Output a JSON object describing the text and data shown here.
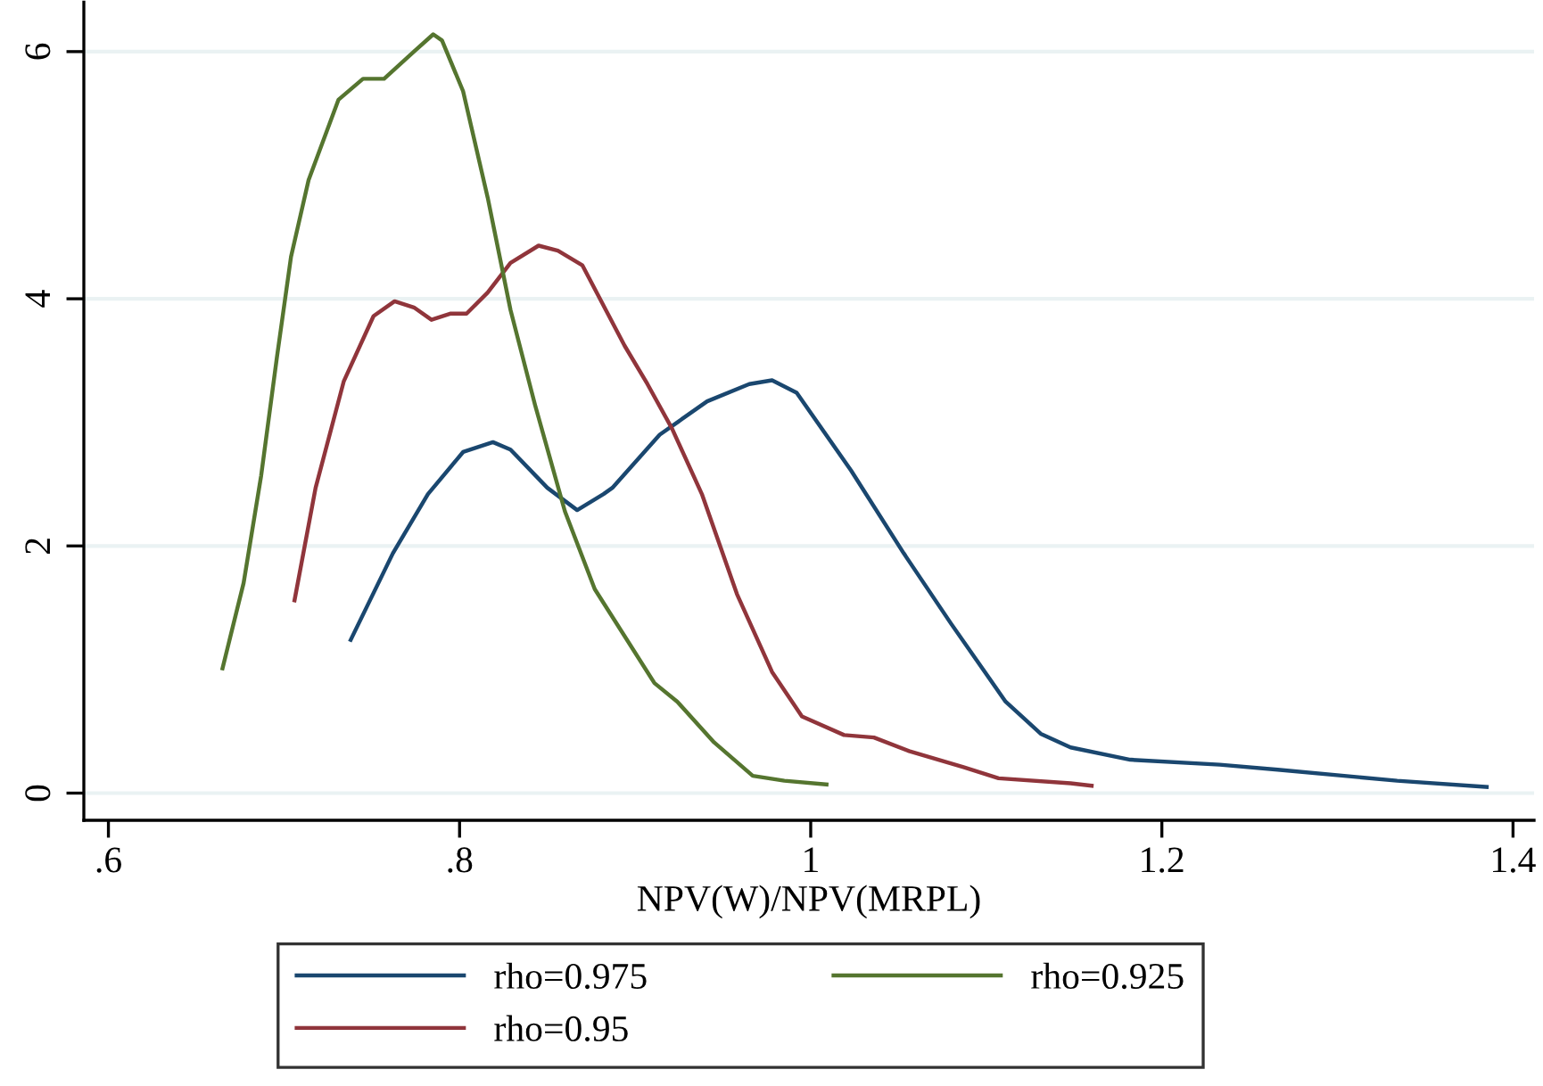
{
  "chart_data": {
    "type": "line",
    "xlabel": "NPV(W)/NPV(MRPL)",
    "xlim": [
      0.586,
      1.412
    ],
    "xticks": [
      {
        "value": 0.6,
        "label": ".6"
      },
      {
        "value": 0.8,
        "label": ".8"
      },
      1,
      1.2,
      1.4
    ],
    "ylim": [
      -0.22,
      6.4
    ],
    "yticks": [
      0,
      2,
      4,
      6
    ],
    "grid": "y",
    "legend": "bottom",
    "line_style": "solid",
    "series": [
      {
        "name": "rho=0.975",
        "color": "#1a476f",
        "x": [
          0.738,
          0.762,
          0.782,
          0.802,
          0.819,
          0.829,
          0.85,
          0.867,
          0.882,
          0.887,
          0.914,
          0.941,
          0.965,
          0.978,
          0.992,
          1.023,
          1.053,
          1.08,
          1.111,
          1.131,
          1.148,
          1.182,
          1.233,
          1.266,
          1.334,
          1.385
        ],
        "values": [
          1.24,
          1.94,
          2.42,
          2.76,
          2.84,
          2.78,
          2.47,
          2.29,
          2.42,
          2.47,
          2.9,
          3.17,
          3.31,
          3.34,
          3.24,
          2.61,
          1.94,
          1.37,
          0.74,
          0.48,
          0.37,
          0.27,
          0.23,
          0.19,
          0.1,
          0.05
        ]
      },
      {
        "name": "rho=0.95",
        "color": "#90353b",
        "x": [
          0.706,
          0.718,
          0.734,
          0.751,
          0.763,
          0.774,
          0.784,
          0.795,
          0.804,
          0.816,
          0.829,
          0.845,
          0.856,
          0.87,
          0.894,
          0.907,
          0.921,
          0.938,
          0.958,
          0.978,
          0.995,
          1.019,
          1.036,
          1.056,
          1.087,
          1.107,
          1.148,
          1.16
        ],
        "values": [
          1.56,
          2.47,
          3.33,
          3.86,
          3.98,
          3.93,
          3.83,
          3.88,
          3.88,
          4.05,
          4.29,
          4.43,
          4.39,
          4.27,
          3.62,
          3.31,
          2.95,
          2.42,
          1.61,
          0.98,
          0.62,
          0.47,
          0.45,
          0.34,
          0.21,
          0.12,
          0.08,
          0.06
        ]
      },
      {
        "name": "rho=0.925",
        "color": "#55752f",
        "x": [
          0.665,
          0.677,
          0.687,
          0.696,
          0.704,
          0.714,
          0.731,
          0.745,
          0.757,
          0.774,
          0.785,
          0.79,
          0.802,
          0.816,
          0.829,
          0.843,
          0.86,
          0.877,
          0.911,
          0.924,
          0.945,
          0.967,
          0.985,
          1.009
        ],
        "values": [
          1.01,
          1.7,
          2.57,
          3.53,
          4.34,
          4.96,
          5.61,
          5.78,
          5.78,
          6.0,
          6.14,
          6.09,
          5.68,
          4.82,
          3.91,
          3.14,
          2.28,
          1.65,
          0.89,
          0.74,
          0.41,
          0.14,
          0.1,
          0.07
        ]
      }
    ]
  }
}
